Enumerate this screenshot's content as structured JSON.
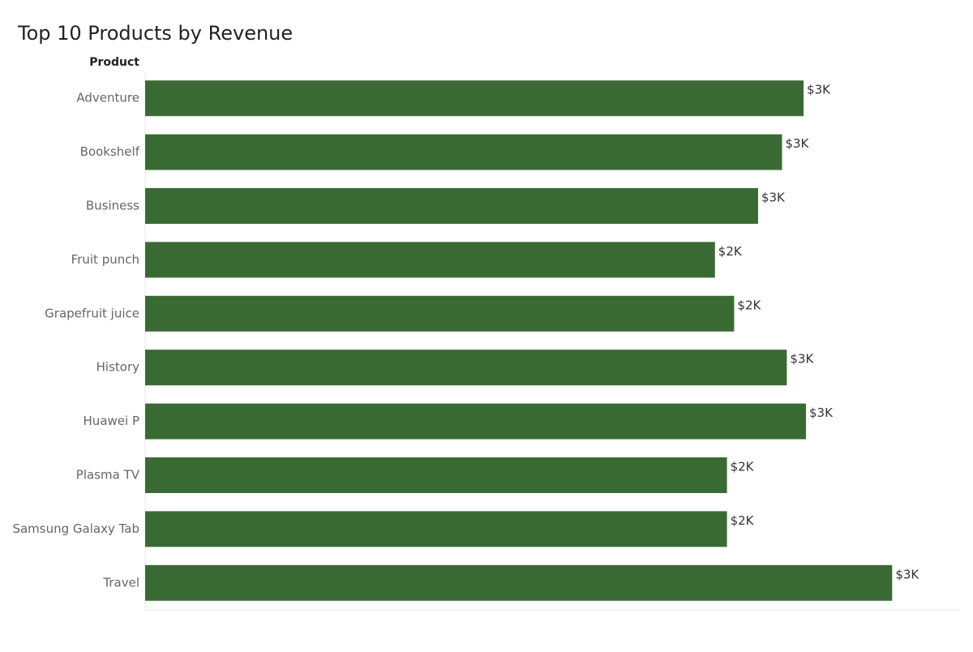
{
  "chart_data": {
    "type": "bar",
    "orientation": "horizontal",
    "title": "Top 10 Products by Revenue",
    "y_label": "Product",
    "categories": [
      "Adventure",
      "Bookshelf",
      "Business",
      "Fruit punch",
      "Grapefruit juice",
      "History",
      "Huawei P",
      "Plasma TV",
      "Samsung Galaxy Tab",
      "Travel"
    ],
    "values": [
      2.75,
      2.66,
      2.56,
      2.38,
      2.46,
      2.68,
      2.76,
      2.43,
      2.43,
      3.12
    ],
    "value_labels": [
      "$3K",
      "$3K",
      "$3K",
      "$2K",
      "$2K",
      "$3K",
      "$3K",
      "$2K",
      "$2K",
      "$3K"
    ],
    "color": "#3a6a34",
    "xlim": [
      0,
      3.4
    ]
  }
}
